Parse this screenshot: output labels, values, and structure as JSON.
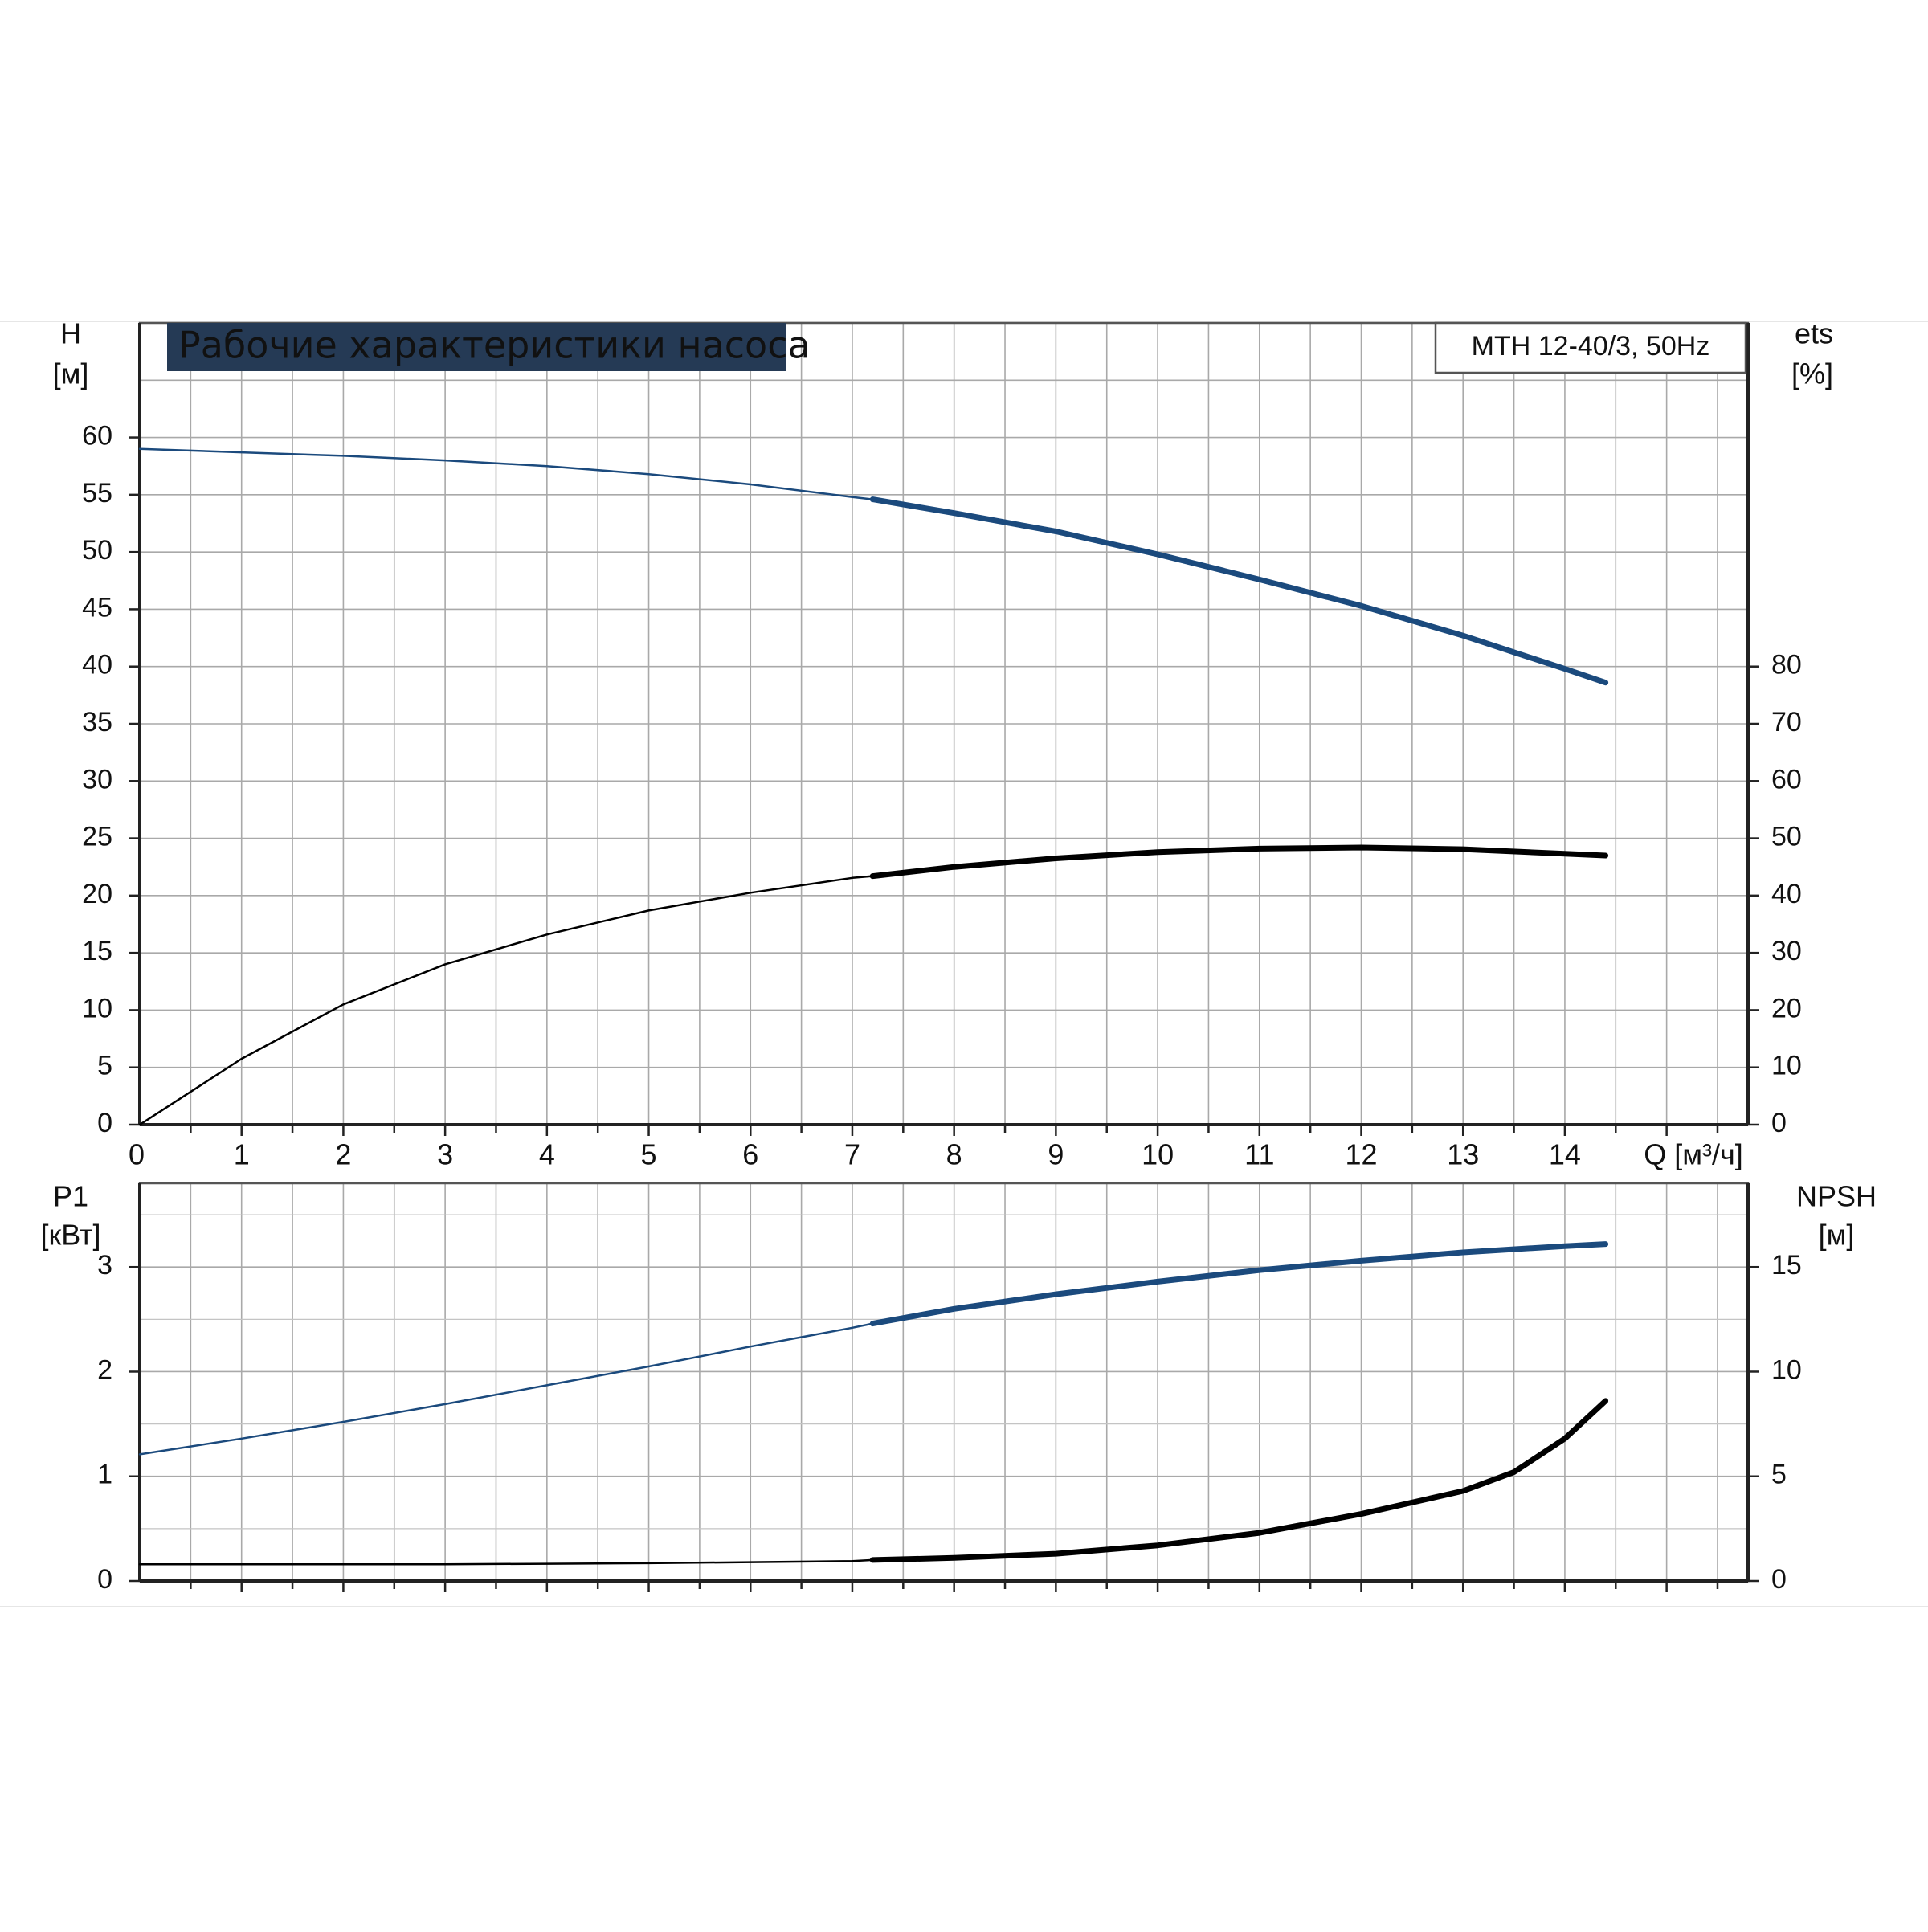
{
  "chart_data": [
    {
      "type": "line",
      "title": "Рабочие характеристики насоса",
      "model_label": "MTH 12-40/3, 50Hz",
      "xlabel": "Q [м³/ч]",
      "xlim": [
        0,
        15.8
      ],
      "xticks": [
        0,
        1,
        2,
        3,
        4,
        5,
        6,
        7,
        8,
        9,
        10,
        11,
        12,
        13,
        14
      ],
      "y_left": {
        "name": "H",
        "unit": "[м]",
        "lim": [
          0,
          70
        ],
        "ticks": [
          0,
          5,
          10,
          15,
          20,
          25,
          30,
          35,
          40,
          45,
          50,
          55,
          60
        ]
      },
      "y_right": {
        "name": "ets",
        "unit": "[%]",
        "lim": [
          0,
          140
        ],
        "ticks": [
          0,
          10,
          20,
          30,
          40,
          50,
          60,
          70,
          80
        ]
      },
      "grid": true,
      "series": [
        {
          "axis": "left",
          "color": "#1b4a7d",
          "x": [
            0,
            1,
            2,
            3,
            4,
            5,
            6,
            7,
            7.2,
            8,
            9,
            10,
            11,
            12,
            13,
            14,
            14.4
          ],
          "values": [
            59.0,
            58.7,
            58.4,
            58.0,
            57.5,
            56.8,
            55.9,
            54.8,
            54.6,
            53.4,
            51.8,
            49.8,
            47.6,
            45.3,
            42.7,
            39.8,
            38.6
          ],
          "thick_from": 7.2
        },
        {
          "axis": "right",
          "color": "#000000",
          "x": [
            0,
            1,
            2,
            3,
            4,
            5,
            6,
            7,
            7.2,
            8,
            9,
            10,
            11,
            12,
            13,
            14,
            14.4
          ],
          "values": [
            0,
            11.5,
            21.0,
            28.0,
            33.2,
            37.4,
            40.5,
            43.1,
            43.4,
            45.0,
            46.5,
            47.6,
            48.2,
            48.4,
            48.1,
            47.3,
            47.0
          ],
          "thick_from": 7.2
        }
      ]
    },
    {
      "type": "line",
      "xlim": [
        0,
        15.8
      ],
      "y_left": {
        "name": "P1",
        "unit": "[кВт]",
        "lim": [
          0,
          3.8
        ],
        "ticks": [
          0,
          1,
          2,
          3
        ]
      },
      "y_right": {
        "name": "NPSH",
        "unit": "[м]",
        "lim": [
          0,
          19
        ],
        "ticks": [
          0,
          5,
          10,
          15
        ]
      },
      "grid": true,
      "series": [
        {
          "axis": "left",
          "color": "#1b4a7d",
          "x": [
            0,
            1,
            2,
            3,
            4,
            5,
            6,
            7,
            7.2,
            8,
            9,
            10,
            11,
            12,
            13,
            14,
            14.4
          ],
          "values": [
            1.21,
            1.36,
            1.52,
            1.69,
            1.87,
            2.05,
            2.24,
            2.42,
            2.46,
            2.6,
            2.74,
            2.86,
            2.97,
            3.06,
            3.14,
            3.2,
            3.22
          ],
          "thick_from": 7.2
        },
        {
          "axis": "right",
          "color": "#000000",
          "x": [
            0,
            1,
            2,
            3,
            4,
            5,
            6,
            7,
            7.2,
            8,
            9,
            10,
            11,
            12,
            13,
            13.5,
            14,
            14.4
          ],
          "values": [
            0.8,
            0.8,
            0.8,
            0.8,
            0.82,
            0.85,
            0.9,
            0.95,
            1.0,
            1.1,
            1.3,
            1.7,
            2.3,
            3.2,
            4.3,
            5.2,
            6.8,
            8.6
          ],
          "thick_from": 7.2
        }
      ]
    }
  ]
}
